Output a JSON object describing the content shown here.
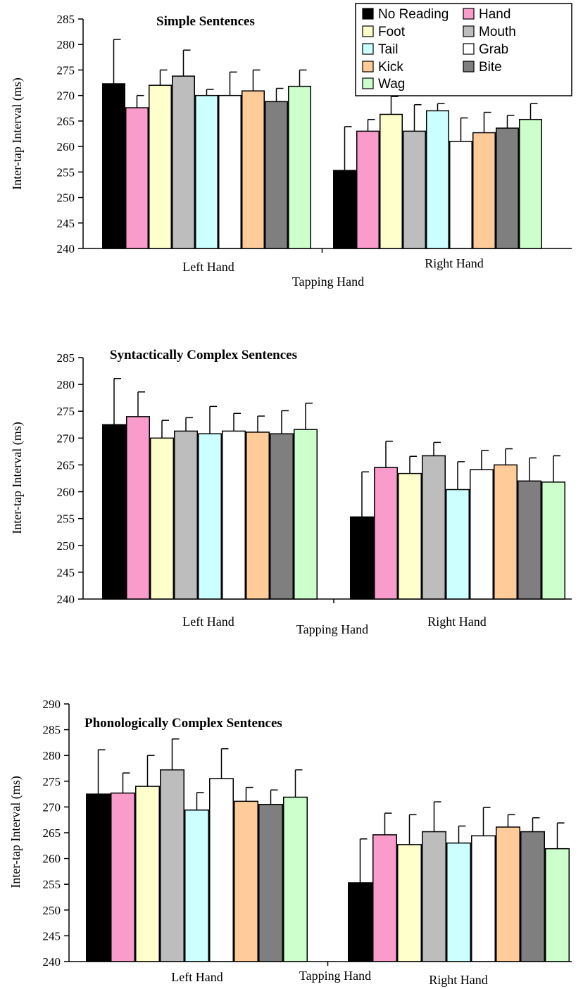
{
  "colors": {
    "No Reading": "#000000",
    "Hand": "#f99ccb",
    "Foot": "#ffffcc",
    "Mouth": "#bdbdbd",
    "Tail": "#ccffff",
    "Grab": "#ffffff",
    "Kick": "#ffcc99",
    "Bite": "#7f7f7f",
    "Wag": "#ccffcc"
  },
  "legend": {
    "placement": "top-right of first panel",
    "items": [
      "No Reading",
      "Hand",
      "Foot",
      "Mouth",
      "Tail",
      "Grab",
      "Kick",
      "Bite",
      "Wag"
    ]
  },
  "chart_data": [
    {
      "type": "bar",
      "title": "Simple Sentences",
      "ylabel": "Inter-tap Interval (ms)",
      "xlabel": "Tapping Hand",
      "categories": [
        "Left Hand",
        "Right Hand"
      ],
      "ylim": [
        240,
        285
      ],
      "yticks": [
        240,
        245,
        250,
        255,
        260,
        265,
        270,
        275,
        280,
        285
      ],
      "series": [
        {
          "name": "No Reading",
          "values": [
            272.3,
            255.3
          ],
          "errors": [
            8.7,
            8.6
          ]
        },
        {
          "name": "Hand",
          "values": [
            267.6,
            263.0
          ],
          "errors": [
            2.4,
            2.3
          ]
        },
        {
          "name": "Foot",
          "values": [
            272.0,
            266.3
          ],
          "errors": [
            3.0,
            3.5
          ]
        },
        {
          "name": "Mouth",
          "values": [
            273.8,
            263.0
          ],
          "errors": [
            5.1,
            5.2
          ]
        },
        {
          "name": "Tail",
          "values": [
            270.0,
            267.0
          ],
          "errors": [
            1.2,
            1.4
          ]
        },
        {
          "name": "Grab",
          "values": [
            270.0,
            261.0
          ],
          "errors": [
            4.6,
            4.6
          ]
        },
        {
          "name": "Kick",
          "values": [
            270.9,
            262.7
          ],
          "errors": [
            4.1,
            4.0
          ]
        },
        {
          "name": "Bite",
          "values": [
            268.8,
            263.6
          ],
          "errors": [
            2.6,
            2.5
          ]
        },
        {
          "name": "Wag",
          "values": [
            271.8,
            265.3
          ],
          "errors": [
            3.2,
            3.1
          ]
        }
      ]
    },
    {
      "type": "bar",
      "title": "Syntactically Complex Sentences",
      "ylabel": "Inter-tap Interval (ms)",
      "xlabel": "Tapping Hand",
      "categories": [
        "Left Hand",
        "Right Hand"
      ],
      "ylim": [
        240,
        285
      ],
      "yticks": [
        240,
        245,
        250,
        255,
        260,
        265,
        270,
        275,
        280,
        285
      ],
      "series": [
        {
          "name": "No Reading",
          "values": [
            272.5,
            255.3
          ],
          "errors": [
            8.6,
            8.4
          ]
        },
        {
          "name": "Hand",
          "values": [
            274.0,
            264.5
          ],
          "errors": [
            4.6,
            4.9
          ]
        },
        {
          "name": "Foot",
          "values": [
            270.0,
            263.4
          ],
          "errors": [
            3.3,
            3.2
          ]
        },
        {
          "name": "Mouth",
          "values": [
            271.3,
            266.7
          ],
          "errors": [
            2.5,
            2.5
          ]
        },
        {
          "name": "Tail",
          "values": [
            270.8,
            260.4
          ],
          "errors": [
            5.1,
            5.2
          ]
        },
        {
          "name": "Grab",
          "values": [
            271.3,
            264.1
          ],
          "errors": [
            3.3,
            3.6
          ]
        },
        {
          "name": "Kick",
          "values": [
            271.1,
            265.0
          ],
          "errors": [
            3.0,
            3.0
          ]
        },
        {
          "name": "Bite",
          "values": [
            270.8,
            262.0
          ],
          "errors": [
            4.3,
            4.3
          ]
        },
        {
          "name": "Wag",
          "values": [
            271.6,
            261.8
          ],
          "errors": [
            4.9,
            4.9
          ]
        }
      ]
    },
    {
      "type": "bar",
      "title": "Phonologically Complex Sentences",
      "ylabel": "Inter-tap Interval (ms)",
      "xlabel": "Tapping Hand",
      "categories": [
        "Left Hand",
        "Right Hand"
      ],
      "ylim": [
        240,
        290
      ],
      "yticks": [
        240,
        245,
        250,
        255,
        260,
        265,
        270,
        275,
        280,
        285,
        290
      ],
      "series": [
        {
          "name": "No Reading",
          "values": [
            272.5,
            255.3
          ],
          "errors": [
            8.6,
            8.5
          ]
        },
        {
          "name": "Hand",
          "values": [
            272.7,
            264.6
          ],
          "errors": [
            3.9,
            4.2
          ]
        },
        {
          "name": "Foot",
          "values": [
            274.0,
            262.7
          ],
          "errors": [
            6.0,
            5.8
          ]
        },
        {
          "name": "Mouth",
          "values": [
            277.2,
            265.2
          ],
          "errors": [
            6.0,
            5.8
          ]
        },
        {
          "name": "Tail",
          "values": [
            269.4,
            263.0
          ],
          "errors": [
            3.4,
            3.3
          ]
        },
        {
          "name": "Grab",
          "values": [
            275.5,
            264.4
          ],
          "errors": [
            5.8,
            5.5
          ]
        },
        {
          "name": "Kick",
          "values": [
            271.1,
            266.1
          ],
          "errors": [
            2.7,
            2.4
          ]
        },
        {
          "name": "Bite",
          "values": [
            270.5,
            265.2
          ],
          "errors": [
            2.8,
            2.7
          ]
        },
        {
          "name": "Wag",
          "values": [
            271.9,
            261.9
          ],
          "errors": [
            5.3,
            5.0
          ]
        }
      ]
    }
  ]
}
